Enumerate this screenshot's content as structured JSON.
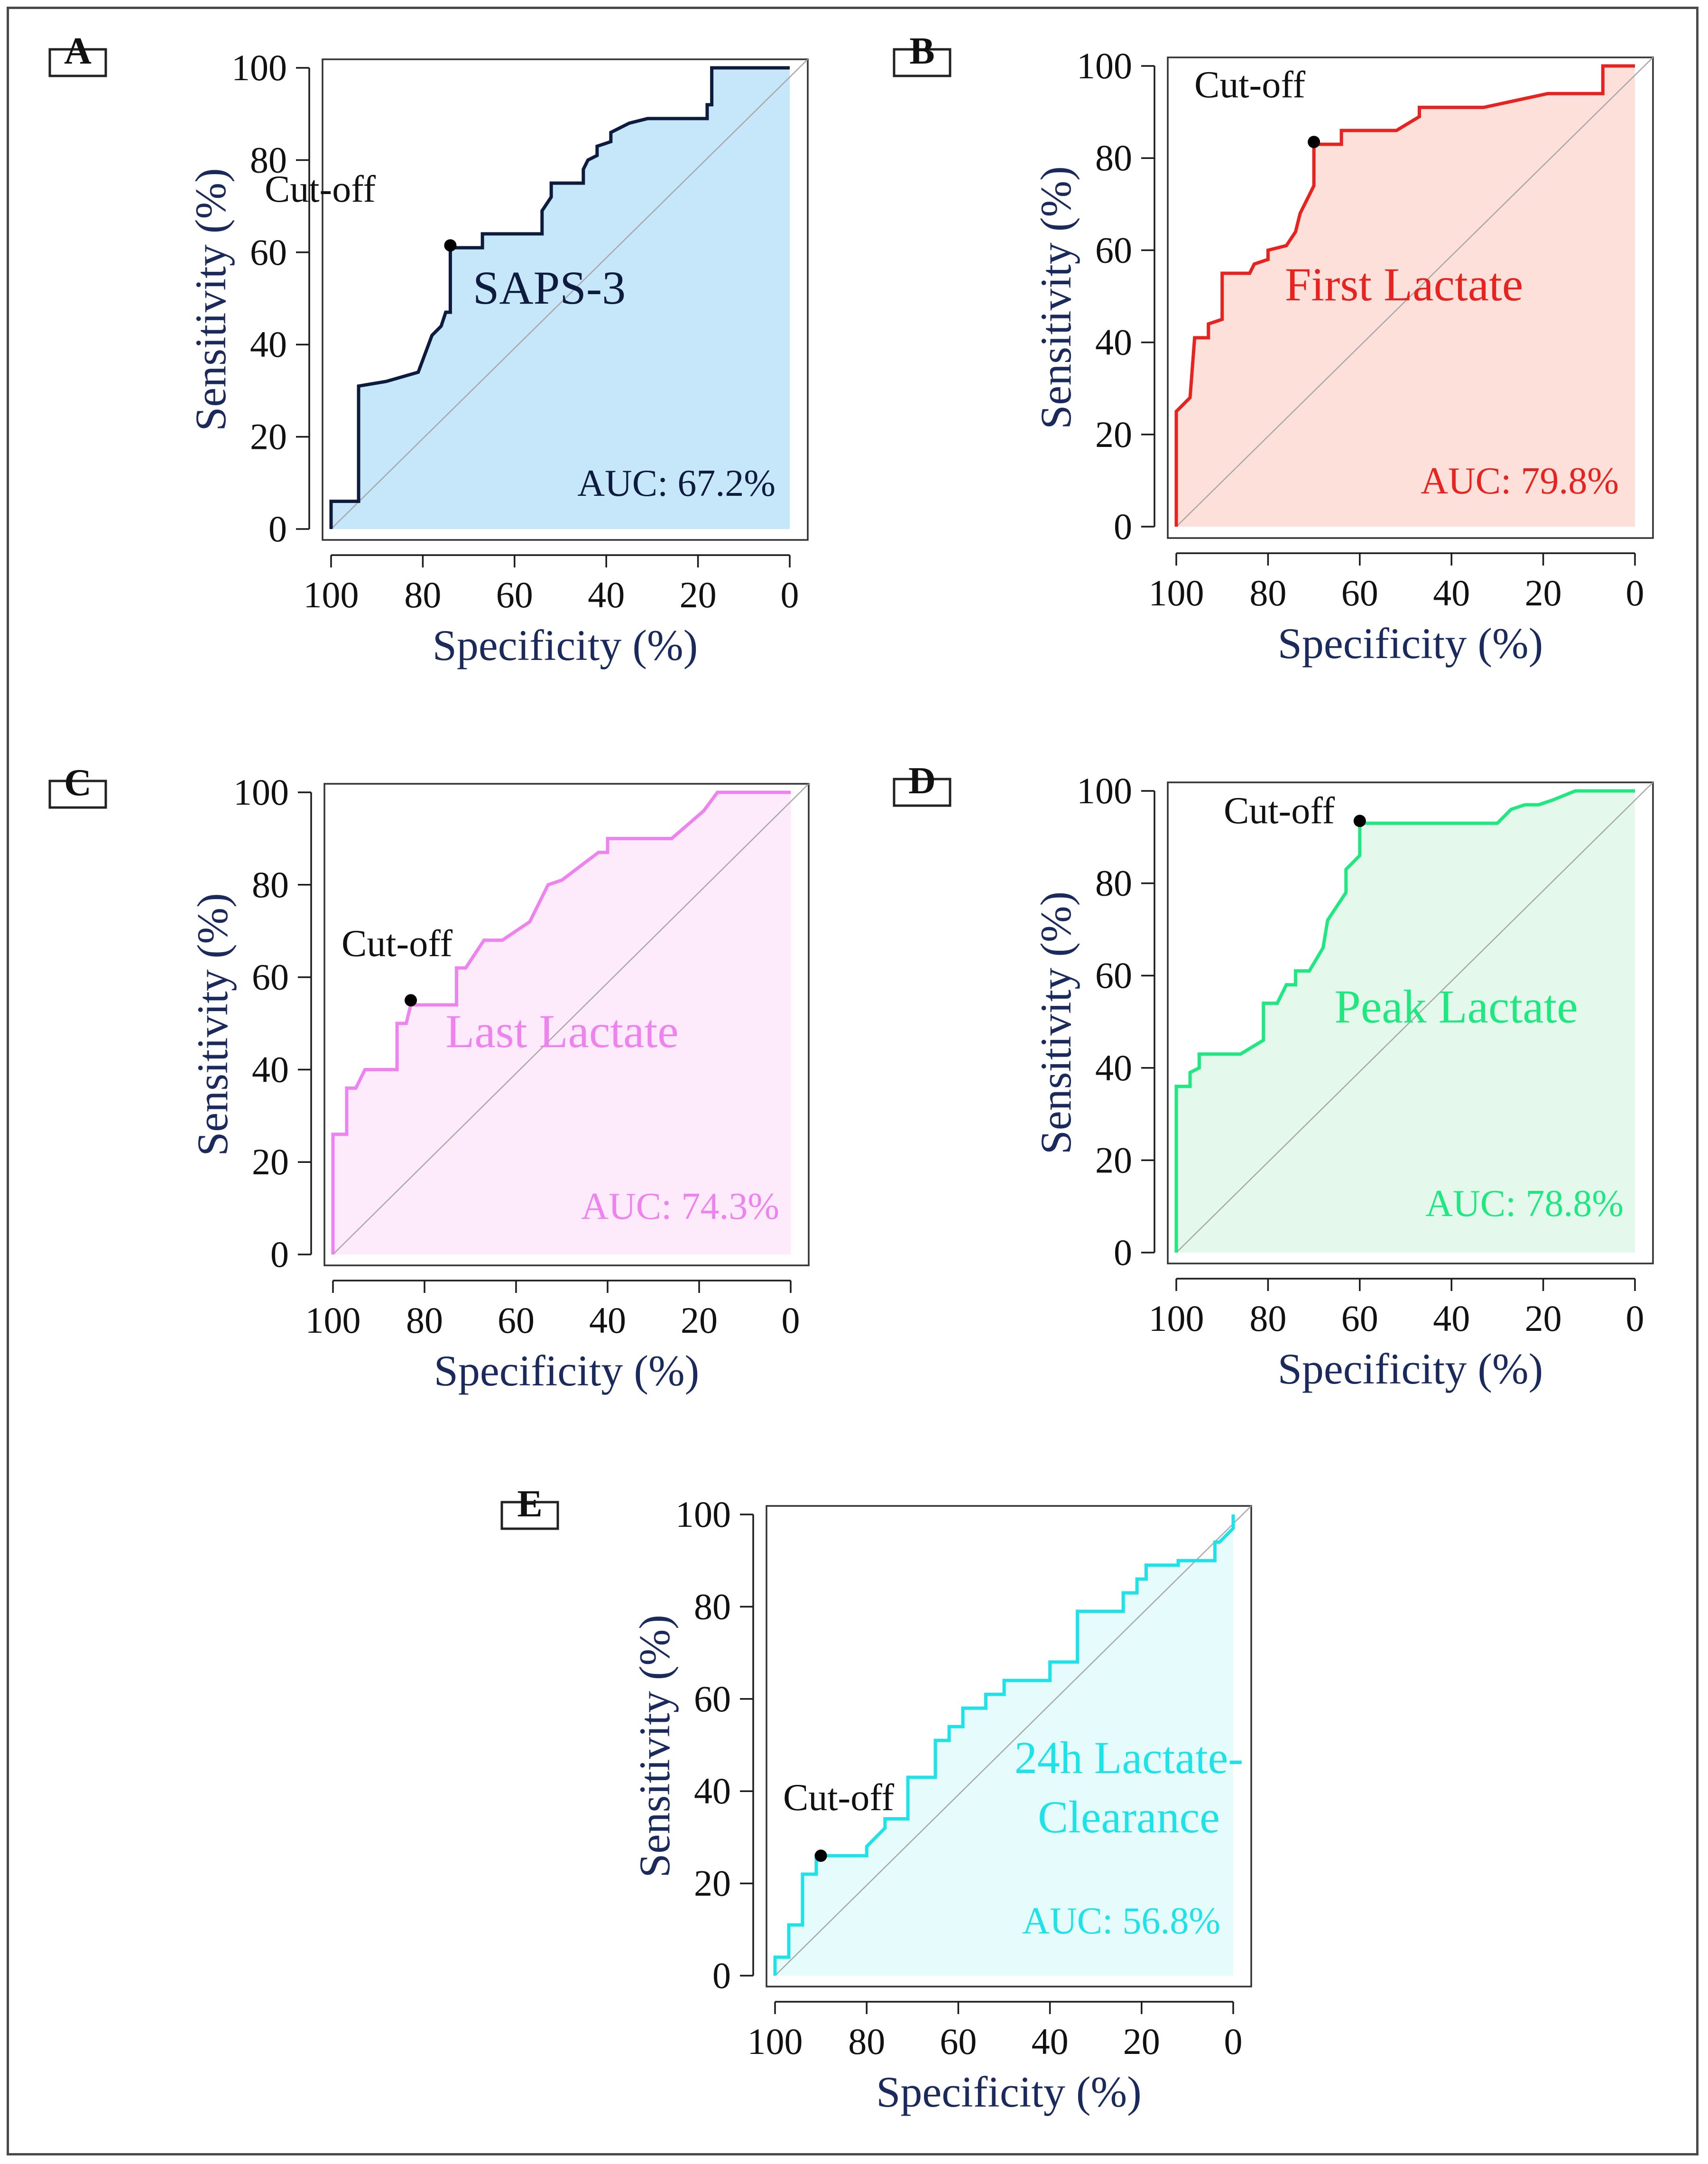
{
  "figure": {
    "x_label": "Specificity (%)",
    "y_label": "Sensitivity (%)",
    "x_ticks": [
      "100",
      "80",
      "60",
      "40",
      "20",
      "0"
    ],
    "y_ticks": [
      "0",
      "20",
      "40",
      "60",
      "80",
      "100"
    ],
    "cutoff_label": "Cut-off"
  },
  "chart_data": [
    {
      "panel": "A",
      "type": "line",
      "series_name": "SAPS-3",
      "auc_label": "AUC: 67.2%",
      "color": "#0d1b3e",
      "fill": "#c6e6fa",
      "xlabel": "Specificity (%)",
      "ylabel": "Sensitivity (%)",
      "xlim": [
        100,
        0
      ],
      "ylim": [
        0,
        100
      ],
      "cutoff": {
        "specificity": 74,
        "sensitivity": 61.5
      },
      "points": [
        [
          100,
          0
        ],
        [
          100,
          6
        ],
        [
          94,
          6
        ],
        [
          94,
          31
        ],
        [
          88,
          32
        ],
        [
          81,
          34
        ],
        [
          78,
          42
        ],
        [
          76,
          44
        ],
        [
          75,
          47
        ],
        [
          74,
          47
        ],
        [
          74,
          61
        ],
        [
          67,
          61
        ],
        [
          67,
          64
        ],
        [
          54,
          64
        ],
        [
          54,
          69
        ],
        [
          52,
          72
        ],
        [
          52,
          75
        ],
        [
          45,
          75
        ],
        [
          45,
          78
        ],
        [
          44,
          80
        ],
        [
          42,
          81
        ],
        [
          42,
          83
        ],
        [
          39,
          84
        ],
        [
          39,
          86
        ],
        [
          35,
          88
        ],
        [
          31,
          89
        ],
        [
          18,
          89
        ],
        [
          18,
          92
        ],
        [
          17,
          92
        ],
        [
          17,
          100
        ],
        [
          0,
          100
        ]
      ]
    },
    {
      "panel": "B",
      "type": "line",
      "series_name": "First Lactate",
      "auc_label": "AUC: 79.8%",
      "color": "#e8231f",
      "fill": "#fde0da",
      "xlabel": "Specificity (%)",
      "ylabel": "Sensitivity (%)",
      "xlim": [
        100,
        0
      ],
      "ylim": [
        0,
        100
      ],
      "cutoff": {
        "specificity": 70,
        "sensitivity": 83.5
      },
      "points": [
        [
          100,
          0
        ],
        [
          100,
          25
        ],
        [
          97,
          28
        ],
        [
          96,
          41
        ],
        [
          93,
          41
        ],
        [
          93,
          44
        ],
        [
          90,
          45
        ],
        [
          90,
          55
        ],
        [
          84,
          55
        ],
        [
          83,
          57
        ],
        [
          80,
          58
        ],
        [
          80,
          60
        ],
        [
          76,
          61
        ],
        [
          74,
          64
        ],
        [
          73,
          68
        ],
        [
          71,
          72
        ],
        [
          70,
          74
        ],
        [
          70,
          83
        ],
        [
          64,
          83
        ],
        [
          64,
          86
        ],
        [
          52,
          86
        ],
        [
          47,
          89
        ],
        [
          47,
          91
        ],
        [
          33,
          91
        ],
        [
          19,
          94
        ],
        [
          7,
          94
        ],
        [
          7,
          100
        ],
        [
          0,
          100
        ]
      ]
    },
    {
      "panel": "C",
      "type": "line",
      "series_name": "Last Lactate",
      "auc_label": "AUC: 74.3%",
      "color": "#ee82ee",
      "fill": "#fdebfb",
      "xlabel": "Specificity (%)",
      "ylabel": "Sensitivity (%)",
      "xlim": [
        100,
        0
      ],
      "ylim": [
        0,
        100
      ],
      "cutoff": {
        "specificity": 83,
        "sensitivity": 55
      },
      "points": [
        [
          100,
          0
        ],
        [
          100,
          26
        ],
        [
          97,
          26
        ],
        [
          97,
          36
        ],
        [
          95,
          36
        ],
        [
          93,
          40
        ],
        [
          86,
          40
        ],
        [
          86,
          50
        ],
        [
          84,
          50
        ],
        [
          83,
          54
        ],
        [
          73,
          54
        ],
        [
          73,
          62
        ],
        [
          71,
          62
        ],
        [
          67,
          68
        ],
        [
          63,
          68
        ],
        [
          57,
          72
        ],
        [
          53,
          80
        ],
        [
          50,
          81
        ],
        [
          46,
          84
        ],
        [
          42,
          87
        ],
        [
          40,
          87
        ],
        [
          40,
          90
        ],
        [
          26,
          90
        ],
        [
          19,
          96
        ],
        [
          16,
          100
        ],
        [
          0,
          100
        ]
      ]
    },
    {
      "panel": "D",
      "type": "line",
      "series_name": "Peak Lactate",
      "auc_label": "AUC: 78.8%",
      "color": "#1ee87f",
      "fill": "#e4f8ec",
      "xlabel": "Specificity (%)",
      "ylabel": "Sensitivity (%)",
      "xlim": [
        100,
        0
      ],
      "ylim": [
        0,
        100
      ],
      "cutoff": {
        "specificity": 60,
        "sensitivity": 93.5
      },
      "points": [
        [
          100,
          0
        ],
        [
          100,
          36
        ],
        [
          97,
          36
        ],
        [
          97,
          39
        ],
        [
          95,
          40
        ],
        [
          95,
          43
        ],
        [
          86,
          43
        ],
        [
          81,
          46
        ],
        [
          81,
          54
        ],
        [
          78,
          54
        ],
        [
          76,
          58
        ],
        [
          74,
          58
        ],
        [
          74,
          61
        ],
        [
          71,
          61
        ],
        [
          68,
          66
        ],
        [
          67,
          72
        ],
        [
          65,
          75
        ],
        [
          63,
          78
        ],
        [
          63,
          83
        ],
        [
          61,
          85
        ],
        [
          60,
          86
        ],
        [
          60,
          93
        ],
        [
          30,
          93
        ],
        [
          27,
          96
        ],
        [
          24,
          97
        ],
        [
          21,
          97
        ],
        [
          18,
          98
        ],
        [
          13,
          100
        ],
        [
          0,
          100
        ]
      ]
    },
    {
      "panel": "E",
      "type": "line",
      "series_name": "24h Lactate-Clearance",
      "series_name_line1": "24h Lactate-",
      "series_name_line2": "Clearance",
      "auc_label": "AUC: 56.8%",
      "color": "#1de3e8",
      "fill": "#e6fbfb",
      "xlabel": "Specificity (%)",
      "ylabel": "Sensitivity (%)",
      "xlim": [
        100,
        0
      ],
      "ylim": [
        0,
        100
      ],
      "cutoff": {
        "specificity": 90,
        "sensitivity": 26
      },
      "points": [
        [
          100,
          0
        ],
        [
          100,
          4
        ],
        [
          97,
          4
        ],
        [
          97,
          11
        ],
        [
          94,
          11
        ],
        [
          94,
          22
        ],
        [
          91,
          22
        ],
        [
          91,
          26
        ],
        [
          80,
          26
        ],
        [
          80,
          28
        ],
        [
          78,
          30
        ],
        [
          76,
          32
        ],
        [
          76,
          34
        ],
        [
          71,
          34
        ],
        [
          71,
          43
        ],
        [
          65,
          43
        ],
        [
          65,
          51
        ],
        [
          62,
          51
        ],
        [
          62,
          54
        ],
        [
          59,
          54
        ],
        [
          59,
          58
        ],
        [
          54,
          58
        ],
        [
          54,
          61
        ],
        [
          50,
          61
        ],
        [
          50,
          64
        ],
        [
          40,
          64
        ],
        [
          40,
          68
        ],
        [
          34,
          68
        ],
        [
          34,
          79
        ],
        [
          24,
          79
        ],
        [
          24,
          83
        ],
        [
          21,
          83
        ],
        [
          21,
          86
        ],
        [
          19,
          86
        ],
        [
          19,
          89
        ],
        [
          12,
          89
        ],
        [
          12,
          90
        ],
        [
          4,
          90
        ],
        [
          4,
          94
        ],
        [
          3,
          94
        ],
        [
          0,
          97
        ],
        [
          0,
          100
        ]
      ]
    }
  ]
}
